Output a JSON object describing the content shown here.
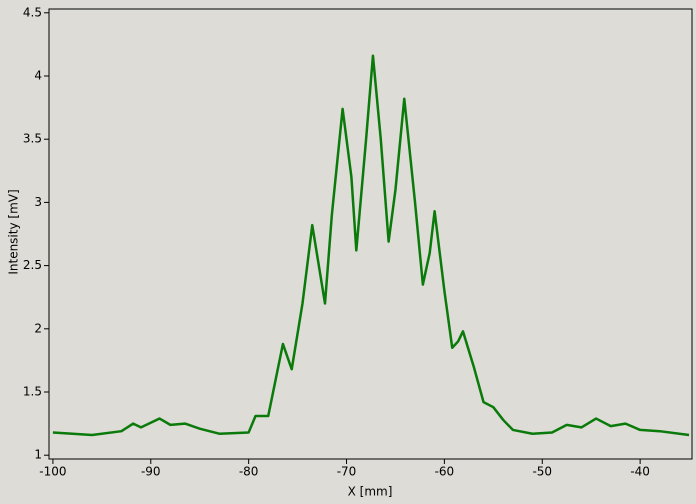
{
  "chart_data": {
    "type": "line",
    "xlabel": "X [mm]",
    "ylabel": "Intensity [mV]",
    "x": [
      -100,
      -96,
      -93,
      -91.8,
      -91,
      -89.1,
      -88,
      -86.5,
      -85,
      -83,
      -80,
      -79.3,
      -78,
      -77.5,
      -76.5,
      -75.6,
      -74.5,
      -73.5,
      -72.2,
      -71.5,
      -70.4,
      -69.5,
      -69,
      -68,
      -67.3,
      -66.5,
      -65.7,
      -65,
      -64.1,
      -63,
      -62.2,
      -61.5,
      -61,
      -60,
      -59.2,
      -58.6,
      -58.1,
      -57,
      -56,
      -55,
      -54,
      -53,
      -51,
      -49,
      -47.5,
      -46,
      -44.5,
      -43,
      -41.5,
      -40,
      -38,
      -35
    ],
    "series": [
      {
        "color": "#0a7a0a",
        "values": [
          1.18,
          1.16,
          1.19,
          1.25,
          1.22,
          1.29,
          1.24,
          1.25,
          1.21,
          1.17,
          1.18,
          1.31,
          1.31,
          1.5,
          1.88,
          1.68,
          2.2,
          2.82,
          2.2,
          2.9,
          3.74,
          3.2,
          2.62,
          3.5,
          4.16,
          3.5,
          2.69,
          3.1,
          3.82,
          3.0,
          2.35,
          2.6,
          2.93,
          2.3,
          1.85,
          1.9,
          1.98,
          1.7,
          1.42,
          1.38,
          1.28,
          1.2,
          1.17,
          1.18,
          1.24,
          1.22,
          1.29,
          1.23,
          1.25,
          1.2,
          1.19,
          1.16
        ]
      }
    ],
    "xlim": [
      -100.4,
      -34.7
    ],
    "ylim": [
      0.97,
      4.53
    ],
    "xticks": [
      -100,
      -90,
      -80,
      -70,
      -60,
      -50,
      -40
    ],
    "yticks": [
      1,
      1.5,
      2,
      2.5,
      3,
      3.5,
      4,
      4.5
    ]
  }
}
